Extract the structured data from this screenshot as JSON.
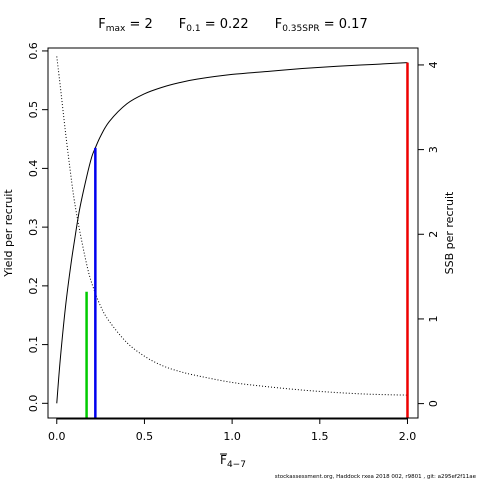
{
  "chart_data": {
    "type": "line",
    "title_parts": [
      {
        "base": "F",
        "sub": "max",
        "value": " = 2"
      },
      {
        "base": "F",
        "sub": "0.1",
        "value": " = 0.22"
      },
      {
        "base": "F",
        "sub": "0.35SPR",
        "value": " = 0.17"
      }
    ],
    "xlabel_base": "F",
    "xlabel_sub": "4−7",
    "ylabel_left": "Yield per recruit",
    "ylabel_right": "SSB per recruit",
    "footer": "stockassessment.org,  Haddock  rxea  2018  002,  r9801  ,  git:  a295ef2f11ae",
    "xlim": [
      -0.05,
      2.06
    ],
    "ylim_left": [
      -0.025,
      0.605
    ],
    "ylim_right": [
      -0.17,
      4.2
    ],
    "x_ticks": [
      0,
      0.5,
      1,
      1.5,
      2
    ],
    "x_tick_labels": [
      "0.0",
      "0.5",
      "1.0",
      "1.5",
      "2.0"
    ],
    "y_left_ticks": [
      0,
      0.1,
      0.2,
      0.3,
      0.4,
      0.5,
      0.6
    ],
    "y_left_tick_labels": [
      "0.0",
      "0.1",
      "0.2",
      "0.3",
      "0.4",
      "0.5",
      "0.6"
    ],
    "y_right_ticks": [
      0,
      1,
      2,
      3,
      4
    ],
    "y_right_tick_labels": [
      "0",
      "1",
      "2",
      "3",
      "4"
    ],
    "series": [
      {
        "axis": "left",
        "style": "solid",
        "color": "#000000",
        "x": [
          0,
          0.02,
          0.05,
          0.08,
          0.1,
          0.13,
          0.17,
          0.2,
          0.22,
          0.25,
          0.3,
          0.4,
          0.5,
          0.6,
          0.7,
          0.8,
          1.0,
          1.2,
          1.4,
          1.6,
          1.8,
          2.0
        ],
        "y": [
          0.0,
          0.075,
          0.165,
          0.235,
          0.275,
          0.33,
          0.385,
          0.42,
          0.435,
          0.455,
          0.48,
          0.51,
          0.527,
          0.538,
          0.546,
          0.552,
          0.56,
          0.565,
          0.57,
          0.574,
          0.577,
          0.58
        ]
      },
      {
        "axis": "right",
        "style": "dotted",
        "color": "#000000",
        "x": [
          0,
          0.02,
          0.05,
          0.08,
          0.1,
          0.13,
          0.17,
          0.2,
          0.25,
          0.3,
          0.4,
          0.5,
          0.6,
          0.7,
          0.8,
          1.0,
          1.2,
          1.4,
          1.6,
          1.8,
          2.0
        ],
        "y": [
          4.1,
          3.75,
          3.2,
          2.7,
          2.4,
          2.05,
          1.65,
          1.42,
          1.15,
          0.97,
          0.72,
          0.56,
          0.45,
          0.38,
          0.33,
          0.25,
          0.2,
          0.16,
          0.13,
          0.11,
          0.1
        ]
      }
    ],
    "reference_lines": [
      {
        "label": "F0.35SPR",
        "x": 0.17,
        "y": 0.19,
        "color": "#00cc00"
      },
      {
        "label": "F0.1",
        "x": 0.22,
        "y": 0.435,
        "color": "#0000ee"
      },
      {
        "label": "Fmax",
        "x": 2.0,
        "y": 0.58,
        "color": "#ee0000"
      }
    ]
  }
}
